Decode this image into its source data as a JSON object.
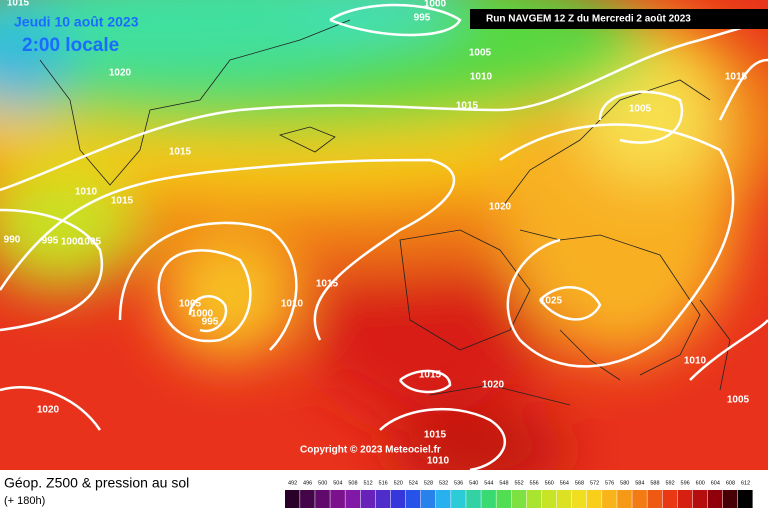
{
  "header": {
    "date": "Jeudi 10 août 2023",
    "local_time": "2:00 locale",
    "run": "Run NAVGEM 12 Z du Mercredi 2 août 2023"
  },
  "isobar_labels": [
    "1015",
    "1000",
    "995",
    "1020",
    "1005",
    "1010",
    "1015",
    "1015",
    "1005",
    "1015",
    "1010",
    "1015",
    "1020",
    "990",
    "995",
    "1000",
    "1005",
    "1015",
    "1010",
    "1005",
    "1000",
    "995",
    "1025",
    "1015",
    "1020",
    "1010",
    "1005",
    "1020",
    "1015",
    "1010"
  ],
  "copyright": "Copyright © 2023 Meteociel.fr",
  "footer": {
    "title": "Géop. Z500 & pression au sol",
    "lead": "(+ 180h)"
  },
  "legend": {
    "ticks": [
      492,
      496,
      500,
      504,
      508,
      512,
      516,
      520,
      524,
      528,
      532,
      536,
      540,
      544,
      548,
      552,
      556,
      560,
      564,
      568,
      572,
      576,
      580,
      584,
      588,
      592,
      596,
      600,
      604,
      608,
      612
    ]
  }
}
